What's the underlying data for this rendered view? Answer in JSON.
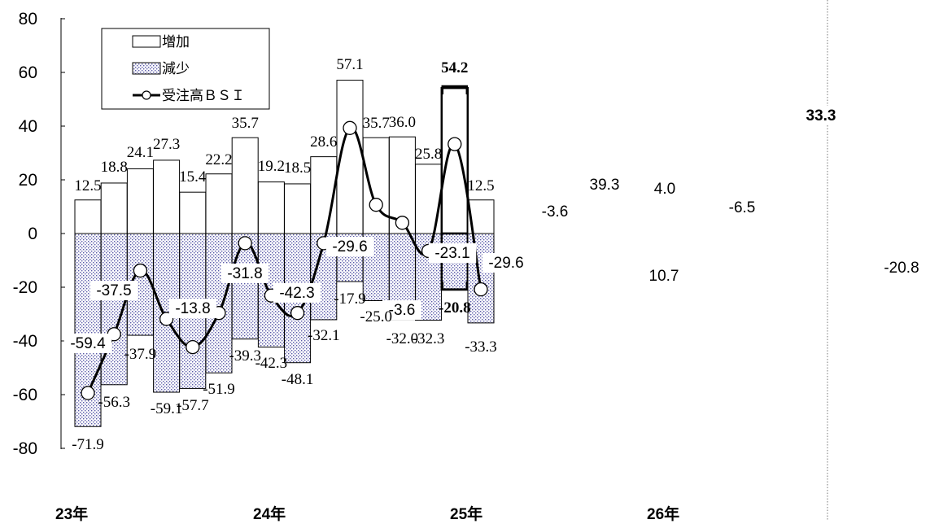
{
  "chart_data": {
    "type": "bar",
    "ylim": [
      -80,
      80
    ],
    "yticks": [
      "80",
      "60",
      "40",
      "20",
      "0",
      "-20",
      "-40",
      "-60",
      "-80"
    ],
    "xlabels": [
      "23年",
      "24年",
      "25年",
      "26年"
    ],
    "legend": {
      "items": [
        "増加",
        "減少",
        "受注高ＢＳＩ"
      ]
    },
    "series": [
      {
        "name": "増加",
        "values": [
          12.5,
          18.8,
          24.1,
          27.3,
          15.4,
          22.2,
          35.7,
          19.2,
          18.5,
          28.6,
          57.1,
          35.7,
          36.0,
          25.8,
          54.2,
          12.5
        ],
        "labels": [
          "12.5",
          "18.8",
          "24.1",
          "27.3",
          "15.4",
          "22.2",
          "35.7",
          "19.2",
          "18.5",
          "28.6",
          "57.1",
          "35.7",
          "36.0",
          "25.8",
          "54.2",
          "12.5"
        ]
      },
      {
        "name": "減少",
        "values": [
          -71.9,
          -56.3,
          -37.9,
          -59.1,
          -57.7,
          -51.9,
          -39.3,
          -42.3,
          -48.1,
          -32.1,
          -17.9,
          -25.0,
          -32.0,
          -32.3,
          -20.8,
          -33.3
        ],
        "labels": [
          "-71.9",
          "-56.3",
          "-37.9",
          "-59.1",
          "-57.7",
          "-51.9",
          "-39.3",
          "-42.3",
          "-48.1",
          "-32.1",
          "-17.9",
          "-25.0",
          "-32.0",
          "-32.3",
          "-20.8",
          "-33.3"
        ]
      },
      {
        "name": "受注高ＢＳＩ",
        "values": [
          -59.4,
          -37.5,
          -13.8,
          -31.8,
          -42.3,
          -29.6,
          -3.6,
          -23.1,
          -29.6,
          -3.6,
          39.3,
          10.7,
          4.0,
          -6.5,
          33.3,
          -20.8
        ],
        "labels": [
          "-59.4",
          "-37.5",
          "-13.8",
          "-31.8",
          "-42.3",
          "-29.6",
          "-3.6",
          "-23.1",
          "-29.6",
          "-3.6",
          "39.3",
          "10.7",
          "4.0",
          "-6.5",
          "33.3",
          "-20.8"
        ]
      }
    ]
  }
}
